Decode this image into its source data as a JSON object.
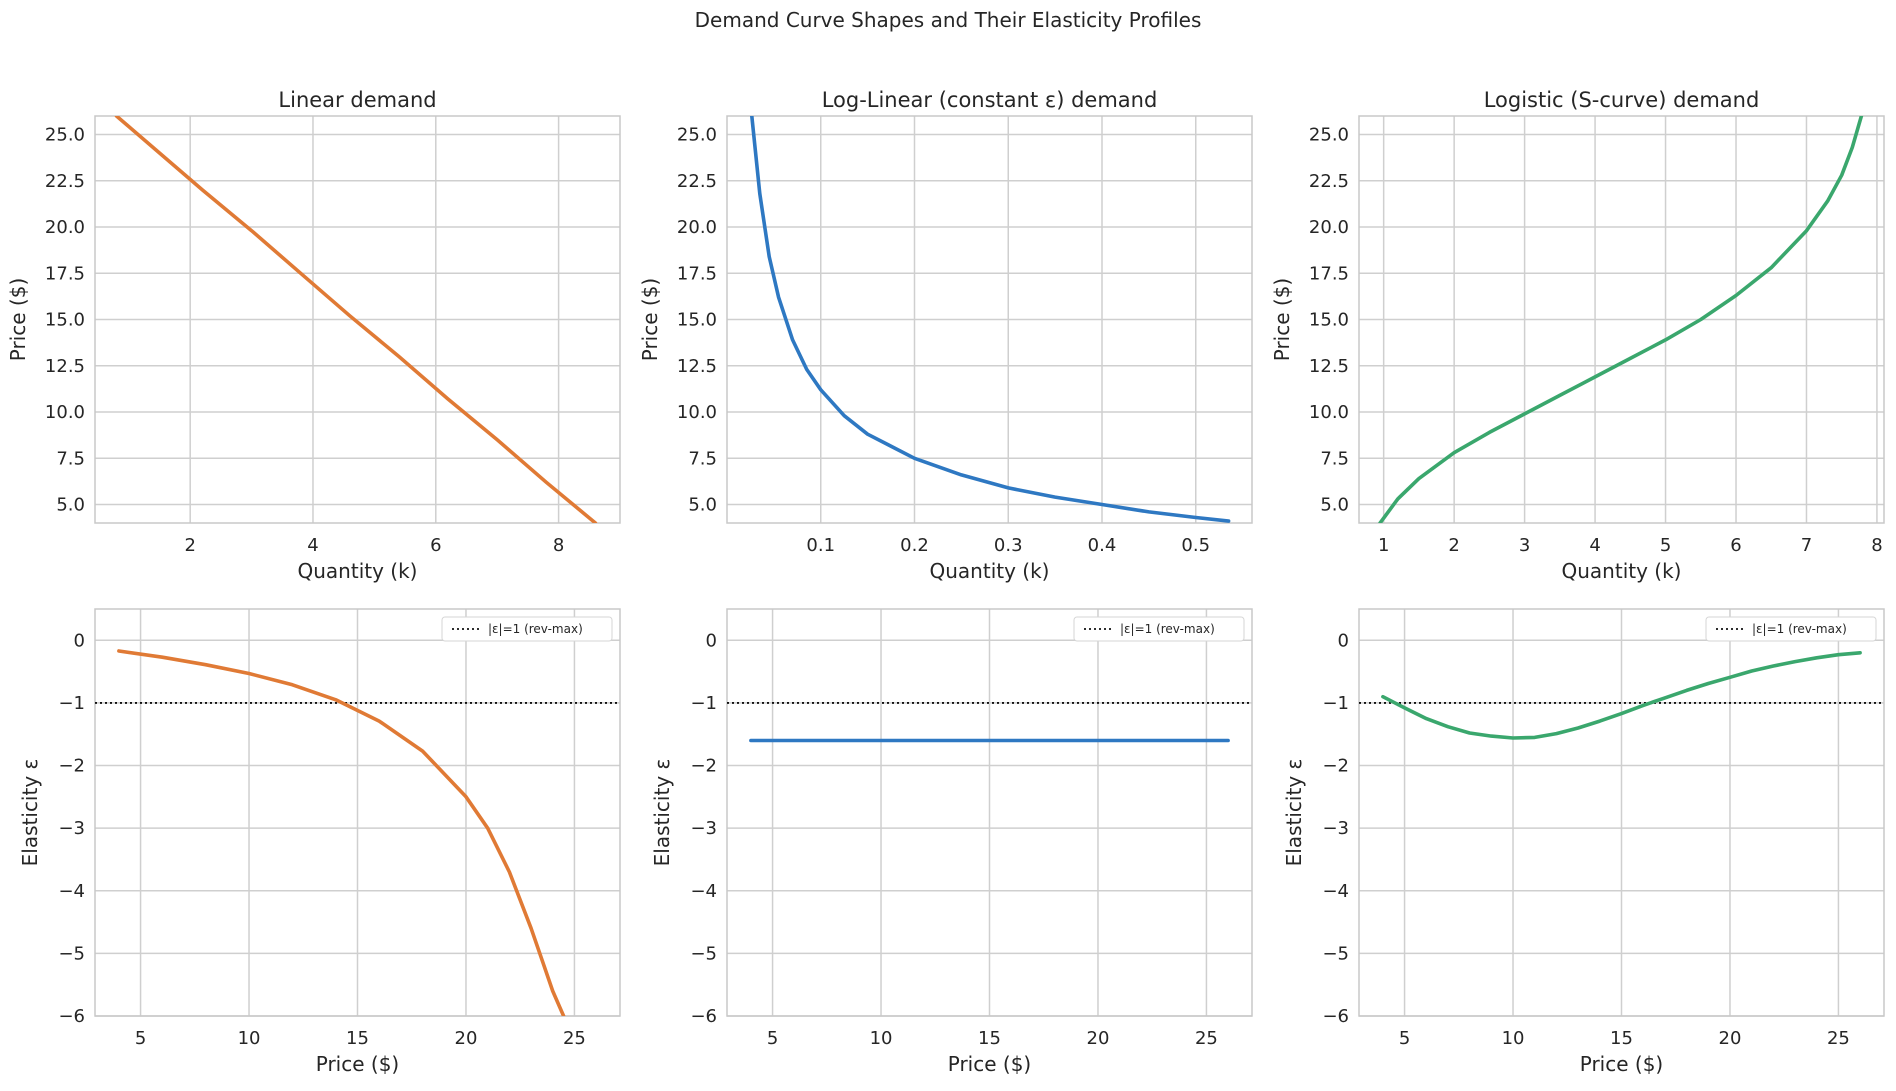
{
  "figure": {
    "title": "Demand Curve Shapes and Their Elasticity Profiles"
  },
  "colors": {
    "linear": "#e07a35",
    "loglinear": "#2e78c2",
    "logistic": "#3aa76d",
    "grid": "#cfcfcf",
    "frame": "#c8c8c8",
    "reference": "#111111"
  },
  "chart_data": [
    {
      "id": "linear-demand",
      "type": "line",
      "title": "Linear demand",
      "xlabel": "Quantity (k)",
      "ylabel": "Price ($)",
      "xlim": [
        0.45,
        9.0
      ],
      "ylim": [
        4.0,
        26.0
      ],
      "xticks": [
        2,
        4,
        6,
        8
      ],
      "yticks": [
        5.0,
        7.5,
        10.0,
        12.5,
        15.0,
        17.5,
        20.0,
        22.5,
        25.0
      ],
      "ytick_labels": [
        "5.0",
        "7.5",
        "10.0",
        "12.5",
        "15.0",
        "17.5",
        "20.0",
        "22.5",
        "25.0"
      ],
      "series": [
        {
          "color_key": "linear",
          "x": [
            0.8,
            1.5,
            2.2,
            3.0,
            3.8,
            4.6,
            5.4,
            6.2,
            7.0,
            7.8,
            8.6
          ],
          "y": [
            26.0,
            24.0,
            22.0,
            19.8,
            17.5,
            15.2,
            13.0,
            10.7,
            8.5,
            6.2,
            4.0
          ]
        }
      ]
    },
    {
      "id": "loglinear-demand",
      "type": "line",
      "title": "Log-Linear (constant ε) demand",
      "xlabel": "Quantity (k)",
      "ylabel": "Price ($)",
      "xlim": [
        0.0,
        0.56
      ],
      "ylim": [
        4.0,
        26.0
      ],
      "xticks": [
        0.1,
        0.2,
        0.3,
        0.4,
        0.5
      ],
      "yticks": [
        5.0,
        7.5,
        10.0,
        12.5,
        15.0,
        17.5,
        20.0,
        22.5,
        25.0
      ],
      "ytick_labels": [
        "5.0",
        "7.5",
        "10.0",
        "12.5",
        "15.0",
        "17.5",
        "20.0",
        "22.5",
        "25.0"
      ],
      "series": [
        {
          "color_key": "loglinear",
          "x": [
            0.0265,
            0.035,
            0.045,
            0.055,
            0.07,
            0.085,
            0.1,
            0.125,
            0.15,
            0.2,
            0.25,
            0.3,
            0.35,
            0.4,
            0.45,
            0.5,
            0.535
          ],
          "y": [
            26.0,
            21.8,
            18.4,
            16.2,
            13.9,
            12.3,
            11.2,
            9.8,
            8.8,
            7.5,
            6.6,
            5.9,
            5.4,
            5.0,
            4.6,
            4.3,
            4.1
          ]
        }
      ]
    },
    {
      "id": "logistic-demand",
      "type": "line",
      "title": "Logistic (S-curve) demand",
      "xlabel": "Quantity (k)",
      "ylabel": "Price ($)",
      "xlim": [
        0.65,
        8.1
      ],
      "ylim": [
        4.0,
        26.0
      ],
      "xticks": [
        1,
        2,
        3,
        4,
        5,
        6,
        7,
        8
      ],
      "yticks": [
        5.0,
        7.5,
        10.0,
        12.5,
        15.0,
        17.5,
        20.0,
        22.5,
        25.0
      ],
      "ytick_labels": [
        "5.0",
        "7.5",
        "10.0",
        "12.5",
        "15.0",
        "17.5",
        "20.0",
        "22.5",
        "25.0"
      ],
      "series": [
        {
          "color_key": "logistic",
          "x": [
            0.95,
            1.2,
            1.5,
            2.0,
            2.5,
            3.0,
            3.5,
            4.0,
            4.5,
            5.0,
            5.5,
            6.0,
            6.5,
            7.0,
            7.3,
            7.5,
            7.65,
            7.78
          ],
          "y": [
            4.0,
            5.3,
            6.4,
            7.8,
            8.9,
            9.9,
            10.9,
            11.9,
            12.9,
            13.9,
            15.0,
            16.3,
            17.8,
            19.8,
            21.4,
            22.8,
            24.3,
            26.0
          ]
        }
      ]
    },
    {
      "id": "linear-elasticity",
      "type": "line",
      "title": "",
      "xlabel": "Price ($)",
      "ylabel": "Elasticity ε",
      "xlim": [
        2.9,
        27.1
      ],
      "ylim": [
        -6,
        0.5
      ],
      "xticks": [
        5,
        10,
        15,
        20,
        25
      ],
      "yticks": [
        -6,
        -5,
        -4,
        -3,
        -2,
        -1,
        0
      ],
      "ytick_labels": [
        "−6",
        "−5",
        "−4",
        "−3",
        "−2",
        "−1",
        "0"
      ],
      "reference_line": {
        "y": -1,
        "label": "|ε|=1 (rev-max)"
      },
      "legend_position": "top-right",
      "series": [
        {
          "color_key": "linear",
          "x": [
            4,
            6,
            8,
            10,
            12,
            14,
            16,
            18,
            20,
            21,
            22,
            23,
            23.5,
            24,
            24.5
          ],
          "y": [
            -0.17,
            -0.27,
            -0.39,
            -0.53,
            -0.71,
            -0.95,
            -1.29,
            -1.77,
            -2.5,
            -3.0,
            -3.7,
            -4.6,
            -5.1,
            -5.6,
            -6.0
          ]
        }
      ]
    },
    {
      "id": "loglinear-elasticity",
      "type": "line",
      "title": "",
      "xlabel": "Price ($)",
      "ylabel": "Elasticity ε",
      "xlim": [
        2.9,
        27.1
      ],
      "ylim": [
        -6,
        0.5
      ],
      "xticks": [
        5,
        10,
        15,
        20,
        25
      ],
      "yticks": [
        -6,
        -5,
        -4,
        -3,
        -2,
        -1,
        0
      ],
      "ytick_labels": [
        "−6",
        "−5",
        "−4",
        "−3",
        "−2",
        "−1",
        "0"
      ],
      "reference_line": {
        "y": -1,
        "label": "|ε|=1 (rev-max)"
      },
      "legend_position": "top-right",
      "series": [
        {
          "color_key": "loglinear",
          "x": [
            4,
            26
          ],
          "y": [
            -1.6,
            -1.6
          ]
        }
      ]
    },
    {
      "id": "logistic-elasticity",
      "type": "line",
      "title": "",
      "xlabel": "Price ($)",
      "ylabel": "Elasticity ε",
      "xlim": [
        2.9,
        27.1
      ],
      "ylim": [
        -6,
        0.5
      ],
      "xticks": [
        5,
        10,
        15,
        20,
        25
      ],
      "yticks": [
        -6,
        -5,
        -4,
        -3,
        -2,
        -1,
        0
      ],
      "ytick_labels": [
        "−6",
        "−5",
        "−4",
        "−3",
        "−2",
        "−1",
        "0"
      ],
      "reference_line": {
        "y": -1,
        "label": "|ε|=1 (rev-max)"
      },
      "legend_position": "top-right",
      "series": [
        {
          "color_key": "logistic",
          "x": [
            4,
            5,
            6,
            7,
            8,
            9,
            10,
            11,
            12,
            13,
            14,
            15,
            16,
            17,
            18,
            19,
            20,
            21,
            22,
            23,
            24,
            25,
            26
          ],
          "y": [
            -0.9,
            -1.08,
            -1.25,
            -1.38,
            -1.48,
            -1.53,
            -1.56,
            -1.55,
            -1.49,
            -1.4,
            -1.29,
            -1.17,
            -1.04,
            -0.92,
            -0.8,
            -0.69,
            -0.59,
            -0.49,
            -0.41,
            -0.34,
            -0.28,
            -0.23,
            -0.2
          ]
        }
      ]
    }
  ]
}
